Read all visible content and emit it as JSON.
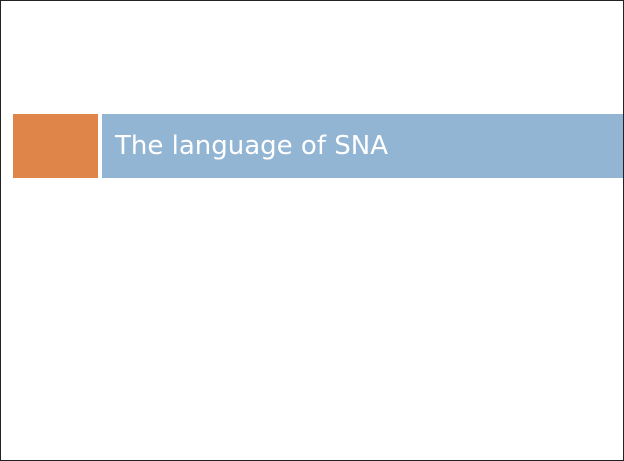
{
  "slide": {
    "title": "The language of SNA"
  }
}
